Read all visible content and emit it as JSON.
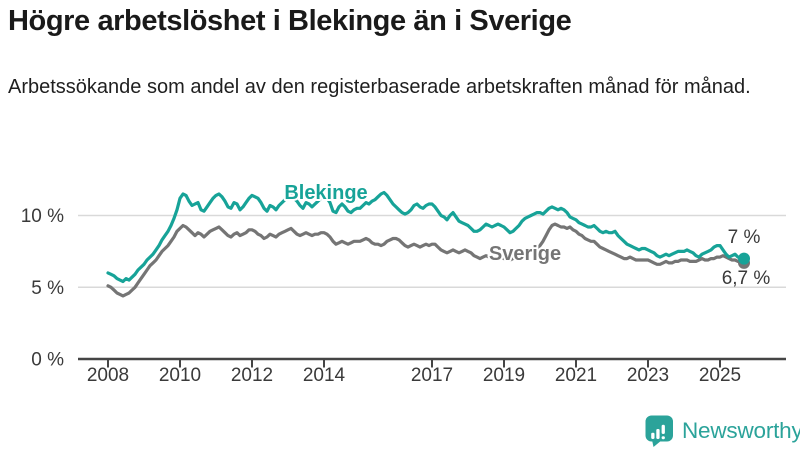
{
  "header": {
    "title": "Högre arbetslöshet i Blekinge än i Sverige",
    "subtitle": "Arbetssökande som andel av den registerbaserade arbetskraften månad för månad."
  },
  "chart_data": {
    "type": "line",
    "title": "Högre arbetslöshet i Blekinge än i Sverige",
    "x_start": "2008-01",
    "x_end": "2025-09",
    "x_frequency": "monthly",
    "unit": "%",
    "ylim": [
      0,
      12.5
    ],
    "grid": "horizontal",
    "yticks": [
      {
        "value": 0,
        "label": "0 %"
      },
      {
        "value": 5,
        "label": "5 %"
      },
      {
        "value": 10,
        "label": "10 %"
      }
    ],
    "xticks": [
      {
        "year": 2008,
        "label": "2008"
      },
      {
        "year": 2010,
        "label": "2010"
      },
      {
        "year": 2012,
        "label": "2012"
      },
      {
        "year": 2014,
        "label": "2014"
      },
      {
        "year": 2017,
        "label": "2017"
      },
      {
        "year": 2019,
        "label": "2019"
      },
      {
        "year": 2021,
        "label": "2021"
      },
      {
        "year": 2023,
        "label": "2023"
      },
      {
        "year": 2025,
        "label": "2025"
      }
    ],
    "series": [
      {
        "name": "Blekinge",
        "color": "#17a398",
        "end_label": "7 %",
        "end_value": 7.0,
        "values": [
          6.0,
          5.9,
          5.8,
          5.6,
          5.5,
          5.4,
          5.6,
          5.5,
          5.7,
          5.9,
          6.2,
          6.4,
          6.6,
          6.9,
          7.1,
          7.3,
          7.6,
          7.9,
          8.3,
          8.6,
          8.9,
          9.3,
          9.8,
          10.4,
          11.2,
          11.5,
          11.4,
          11.0,
          10.7,
          10.8,
          10.9,
          10.4,
          10.3,
          10.6,
          10.9,
          11.2,
          11.4,
          11.5,
          11.3,
          11.0,
          10.6,
          10.5,
          10.9,
          10.8,
          10.4,
          10.6,
          10.9,
          11.2,
          11.4,
          11.3,
          11.2,
          10.9,
          10.5,
          10.3,
          10.7,
          10.6,
          10.4,
          10.7,
          10.9,
          11.1,
          11.3,
          11.4,
          11.2,
          11.0,
          10.7,
          10.5,
          10.9,
          10.8,
          10.6,
          10.8,
          11.0,
          11.2,
          11.3,
          11.2,
          10.9,
          10.3,
          10.2,
          10.6,
          10.8,
          10.6,
          10.3,
          10.2,
          10.4,
          10.5,
          10.5,
          10.7,
          10.9,
          10.8,
          11.0,
          11.1,
          11.3,
          11.5,
          11.6,
          11.4,
          11.1,
          10.8,
          10.6,
          10.4,
          10.2,
          10.1,
          10.2,
          10.4,
          10.7,
          10.8,
          10.6,
          10.5,
          10.7,
          10.8,
          10.8,
          10.6,
          10.3,
          10.0,
          9.9,
          9.7,
          10.0,
          10.2,
          9.9,
          9.6,
          9.5,
          9.4,
          9.3,
          9.1,
          8.9,
          8.9,
          9.0,
          9.2,
          9.4,
          9.3,
          9.2,
          9.3,
          9.4,
          9.3,
          9.2,
          9.0,
          8.8,
          8.9,
          9.1,
          9.3,
          9.6,
          9.8,
          9.9,
          10.0,
          10.1,
          10.2,
          10.2,
          10.1,
          10.3,
          10.5,
          10.6,
          10.5,
          10.4,
          10.5,
          10.4,
          10.2,
          9.9,
          9.8,
          9.7,
          9.5,
          9.4,
          9.3,
          9.2,
          9.2,
          9.3,
          9.1,
          8.9,
          8.8,
          8.9,
          8.8,
          8.8,
          8.9,
          8.6,
          8.4,
          8.2,
          8.0,
          7.9,
          7.8,
          7.7,
          7.6,
          7.7,
          7.7,
          7.6,
          7.5,
          7.4,
          7.2,
          7.1,
          7.2,
          7.3,
          7.2,
          7.3,
          7.4,
          7.5,
          7.5,
          7.5,
          7.6,
          7.5,
          7.4,
          7.2,
          7.1,
          7.3,
          7.4,
          7.5,
          7.6,
          7.8,
          7.9,
          7.9,
          7.6,
          7.3,
          7.1,
          7.2,
          7.3,
          7.1,
          7.0,
          7.0
        ]
      },
      {
        "name": "Sverige",
        "color": "#757575",
        "end_label": "6,7 %",
        "end_value": 6.7,
        "values": [
          5.1,
          5.0,
          4.8,
          4.6,
          4.5,
          4.4,
          4.5,
          4.6,
          4.8,
          5.0,
          5.3,
          5.6,
          5.9,
          6.2,
          6.5,
          6.7,
          6.9,
          7.2,
          7.5,
          7.7,
          7.9,
          8.2,
          8.5,
          8.9,
          9.1,
          9.3,
          9.2,
          9.0,
          8.8,
          8.6,
          8.8,
          8.7,
          8.5,
          8.7,
          8.9,
          9.0,
          9.1,
          9.2,
          9.0,
          8.8,
          8.6,
          8.5,
          8.7,
          8.8,
          8.6,
          8.7,
          8.8,
          9.0,
          9.0,
          8.9,
          8.7,
          8.6,
          8.4,
          8.5,
          8.7,
          8.6,
          8.5,
          8.7,
          8.8,
          8.9,
          9.0,
          9.1,
          8.9,
          8.7,
          8.6,
          8.7,
          8.8,
          8.7,
          8.6,
          8.7,
          8.7,
          8.8,
          8.8,
          8.7,
          8.5,
          8.2,
          8.0,
          8.1,
          8.2,
          8.1,
          8.0,
          8.1,
          8.2,
          8.2,
          8.2,
          8.3,
          8.4,
          8.3,
          8.1,
          8.0,
          8.0,
          7.9,
          8.0,
          8.2,
          8.3,
          8.4,
          8.4,
          8.3,
          8.1,
          7.9,
          7.8,
          7.9,
          8.0,
          7.9,
          7.8,
          7.9,
          8.0,
          7.9,
          8.0,
          8.0,
          7.8,
          7.6,
          7.5,
          7.4,
          7.5,
          7.6,
          7.5,
          7.4,
          7.5,
          7.6,
          7.5,
          7.4,
          7.2,
          7.1,
          7.0,
          7.1,
          7.2,
          7.1,
          7.0,
          6.9,
          7.0,
          7.1,
          7.0,
          6.9,
          6.9,
          7.0,
          7.1,
          7.2,
          7.4,
          7.4,
          7.4,
          7.5,
          7.6,
          7.7,
          7.9,
          8.2,
          8.6,
          9.0,
          9.3,
          9.4,
          9.3,
          9.2,
          9.2,
          9.1,
          9.2,
          9.0,
          8.9,
          8.7,
          8.6,
          8.4,
          8.3,
          8.2,
          8.2,
          8.0,
          7.8,
          7.7,
          7.6,
          7.5,
          7.4,
          7.3,
          7.2,
          7.1,
          7.0,
          7.0,
          7.1,
          7.0,
          6.9,
          6.9,
          6.9,
          6.9,
          6.9,
          6.8,
          6.7,
          6.6,
          6.6,
          6.7,
          6.8,
          6.7,
          6.7,
          6.8,
          6.8,
          6.9,
          6.9,
          6.9,
          6.8,
          6.8,
          6.8,
          6.9,
          7.0,
          6.9,
          6.9,
          7.0,
          7.0,
          7.1,
          7.1,
          7.2,
          7.1,
          7.0,
          6.9,
          6.9,
          6.8,
          6.8,
          6.7
        ]
      }
    ],
    "legend_position": "inline-labels"
  },
  "footer": {
    "brand": "Newsworthy",
    "brand_color": "#2ba39a"
  }
}
